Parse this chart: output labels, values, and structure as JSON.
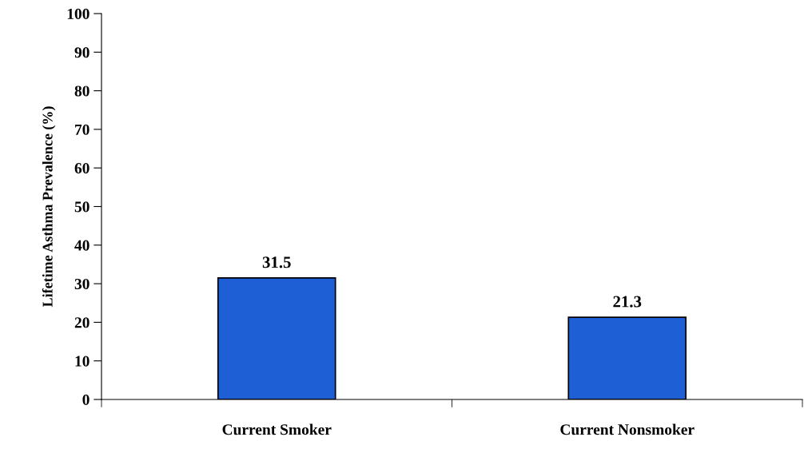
{
  "chart_data": {
    "type": "bar",
    "ylabel": "Lifetime Asthma Prevalence (%)",
    "categories": [
      "Current Smoker",
      "Current Nonsmoker"
    ],
    "values": [
      31.5,
      21.3
    ],
    "color": "#1f5fd6",
    "ylim": [
      0,
      100
    ],
    "yticks": [
      0,
      10,
      20,
      30,
      40,
      50,
      60,
      70,
      80,
      90,
      100
    ],
    "data_labels": true,
    "grid": false,
    "legend": false
  }
}
